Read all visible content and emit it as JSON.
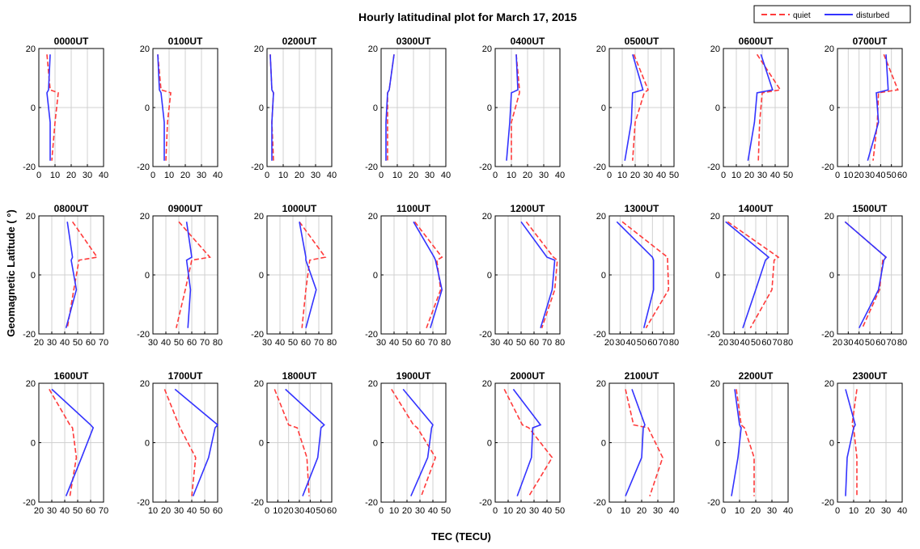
{
  "title": "Hourly latitudinal plot for March 17, 2015",
  "xlabel": "TEC (TECU)",
  "ylabel": "Geomagnetic  Latitude  ( °)",
  "legend": {
    "quiet": "quiet",
    "disturbed": "disturbed",
    "placement": "top-right"
  },
  "colors": {
    "quiet": "#ff3b3b",
    "disturbed": "#3333ff",
    "grid": "#d0d0d0"
  },
  "chart_data": {
    "type": "line",
    "orientation": "x = TEC, y = geomagnetic latitude",
    "y_values": [
      18,
      6,
      5,
      -5,
      -18
    ],
    "ylim": [
      -20,
      20
    ],
    "yticks": [
      -20,
      0,
      20
    ],
    "grid": true,
    "panels": [
      {
        "title": "0000UT",
        "xlim": [
          0,
          40
        ],
        "xticks": [
          0,
          10,
          20,
          30,
          40
        ],
        "quiet": [
          5,
          7,
          12,
          10,
          8
        ],
        "disturbed": [
          7,
          6,
          5,
          7,
          7
        ]
      },
      {
        "title": "0100UT",
        "xlim": [
          0,
          40
        ],
        "xticks": [
          0,
          10,
          20,
          30,
          40
        ],
        "quiet": [
          3,
          5,
          11,
          9,
          8
        ],
        "disturbed": [
          3,
          4,
          5,
          7,
          7
        ]
      },
      {
        "title": "0200UT",
        "xlim": [
          0,
          40
        ],
        "xticks": [
          0,
          10,
          20,
          30,
          40
        ],
        "quiet": [
          2,
          3,
          4,
          3,
          4
        ],
        "disturbed": [
          2,
          3,
          4,
          3,
          3
        ]
      },
      {
        "title": "0300UT",
        "xlim": [
          0,
          40
        ],
        "xticks": [
          0,
          10,
          20,
          30,
          40
        ],
        "quiet": [
          8,
          5,
          4,
          4,
          4
        ],
        "disturbed": [
          8,
          5,
          4,
          3,
          3
        ]
      },
      {
        "title": "0400UT",
        "xlim": [
          0,
          40
        ],
        "xticks": [
          0,
          10,
          20,
          30,
          40
        ],
        "quiet": [
          13,
          15,
          15,
          10,
          10
        ],
        "disturbed": [
          13,
          14,
          10,
          9,
          7
        ]
      },
      {
        "title": "0500UT",
        "xlim": [
          0,
          50
        ],
        "xticks": [
          0,
          10,
          20,
          30,
          40,
          50
        ],
        "quiet": [
          19,
          30,
          27,
          20,
          18
        ],
        "disturbed": [
          18,
          26,
          18,
          17,
          12
        ]
      },
      {
        "title": "0600UT",
        "xlim": [
          0,
          50
        ],
        "xticks": [
          0,
          10,
          20,
          30,
          40,
          50
        ],
        "quiet": [
          26,
          44,
          30,
          28,
          27
        ],
        "disturbed": [
          29,
          38,
          26,
          24,
          19
        ]
      },
      {
        "title": "0700UT",
        "xlim": [
          0,
          60
        ],
        "xticks": [
          0,
          10,
          20,
          30,
          40,
          50,
          60
        ],
        "quiet": [
          43,
          56,
          38,
          37,
          33
        ],
        "disturbed": [
          45,
          47,
          36,
          38,
          28
        ]
      },
      {
        "title": "0800UT",
        "xlim": [
          20,
          70
        ],
        "xticks": [
          20,
          30,
          40,
          50,
          60,
          70
        ],
        "quiet": [
          46,
          65,
          51,
          47,
          42
        ],
        "disturbed": [
          42,
          46,
          45,
          49,
          41
        ]
      },
      {
        "title": "0900UT",
        "xlim": [
          30,
          80
        ],
        "xticks": [
          30,
          40,
          50,
          60,
          70,
          80
        ],
        "quiet": [
          50,
          74,
          60,
          55,
          48
        ],
        "disturbed": [
          56,
          60,
          56,
          59,
          57
        ]
      },
      {
        "title": "1000UT",
        "xlim": [
          30,
          80
        ],
        "xticks": [
          30,
          40,
          50,
          60,
          70,
          80
        ],
        "quiet": [
          55,
          75,
          63,
          60,
          57
        ],
        "disturbed": [
          55,
          60,
          60,
          68,
          60
        ]
      },
      {
        "title": "1100UT",
        "xlim": [
          30,
          80
        ],
        "xticks": [
          30,
          40,
          50,
          60,
          70,
          80
        ],
        "quiet": [
          56,
          77,
          73,
          76,
          65
        ],
        "disturbed": [
          55,
          71,
          72,
          77,
          68
        ]
      },
      {
        "title": "1200UT",
        "xlim": [
          30,
          80
        ],
        "xticks": [
          30,
          40,
          50,
          60,
          70,
          80
        ],
        "quiet": [
          54,
          75,
          78,
          76,
          66
        ],
        "disturbed": [
          50,
          70,
          76,
          74,
          65
        ]
      },
      {
        "title": "1300UT",
        "xlim": [
          20,
          80
        ],
        "xticks": [
          20,
          30,
          40,
          50,
          60,
          70,
          80
        ],
        "quiet": [
          32,
          74,
          74,
          75,
          54
        ],
        "disturbed": [
          27,
          60,
          61,
          61,
          52
        ]
      },
      {
        "title": "1400UT",
        "xlim": [
          20,
          80
        ],
        "xticks": [
          20,
          30,
          40,
          50,
          60,
          70,
          80
        ],
        "quiet": [
          24,
          71,
          67,
          65,
          45
        ],
        "disturbed": [
          22,
          62,
          59,
          50,
          38
        ]
      },
      {
        "title": "1500UT",
        "xlim": [
          20,
          80
        ],
        "xticks": [
          20,
          30,
          40,
          50,
          60,
          70,
          80
        ],
        "quiet": [
          27,
          65,
          62,
          59,
          43
        ],
        "disturbed": [
          27,
          65,
          63,
          58,
          40
        ]
      },
      {
        "title": "1600UT",
        "xlim": [
          20,
          70
        ],
        "xticks": [
          20,
          30,
          40,
          50,
          60,
          70
        ],
        "quiet": [
          28,
          44,
          46,
          49,
          44
        ],
        "disturbed": [
          30,
          60,
          62,
          53,
          41
        ]
      },
      {
        "title": "1700UT",
        "xlim": [
          10,
          60
        ],
        "xticks": [
          10,
          20,
          30,
          40,
          50,
          60
        ],
        "quiet": [
          19,
          30,
          31,
          43,
          40
        ],
        "disturbed": [
          27,
          60,
          58,
          53,
          41
        ]
      },
      {
        "title": "1800UT",
        "xlim": [
          0,
          60
        ],
        "xticks": [
          0,
          10,
          20,
          30,
          40,
          50,
          60
        ],
        "quiet": [
          7,
          20,
          28,
          37,
          39
        ],
        "disturbed": [
          17,
          53,
          50,
          47,
          33
        ]
      },
      {
        "title": "1900UT",
        "xlim": [
          0,
          50
        ],
        "xticks": [
          0,
          10,
          20,
          30,
          40,
          50
        ],
        "quiet": [
          8,
          25,
          28,
          42,
          31
        ],
        "disturbed": [
          17,
          40,
          39,
          36,
          23
        ]
      },
      {
        "title": "2000UT",
        "xlim": [
          0,
          50
        ],
        "xticks": [
          0,
          10,
          20,
          30,
          40,
          50
        ],
        "quiet": [
          7,
          21,
          26,
          44,
          26
        ],
        "disturbed": [
          14,
          35,
          29,
          28,
          17
        ]
      },
      {
        "title": "2100UT",
        "xlim": [
          0,
          40
        ],
        "xticks": [
          0,
          10,
          20,
          30,
          40
        ],
        "quiet": [
          10,
          15,
          24,
          33,
          25
        ],
        "disturbed": [
          14,
          22,
          21,
          20,
          10
        ]
      },
      {
        "title": "2200UT",
        "xlim": [
          0,
          40
        ],
        "xticks": [
          0,
          10,
          20,
          30,
          40
        ],
        "quiet": [
          8,
          11,
          13,
          19,
          19
        ],
        "disturbed": [
          7,
          10,
          11,
          9,
          5
        ]
      },
      {
        "title": "2300UT",
        "xlim": [
          0,
          40
        ],
        "xticks": [
          0,
          10,
          20,
          30,
          40
        ],
        "quiet": [
          12,
          9,
          10,
          12,
          12
        ],
        "disturbed": [
          5,
          11,
          10,
          6,
          5
        ]
      }
    ]
  }
}
